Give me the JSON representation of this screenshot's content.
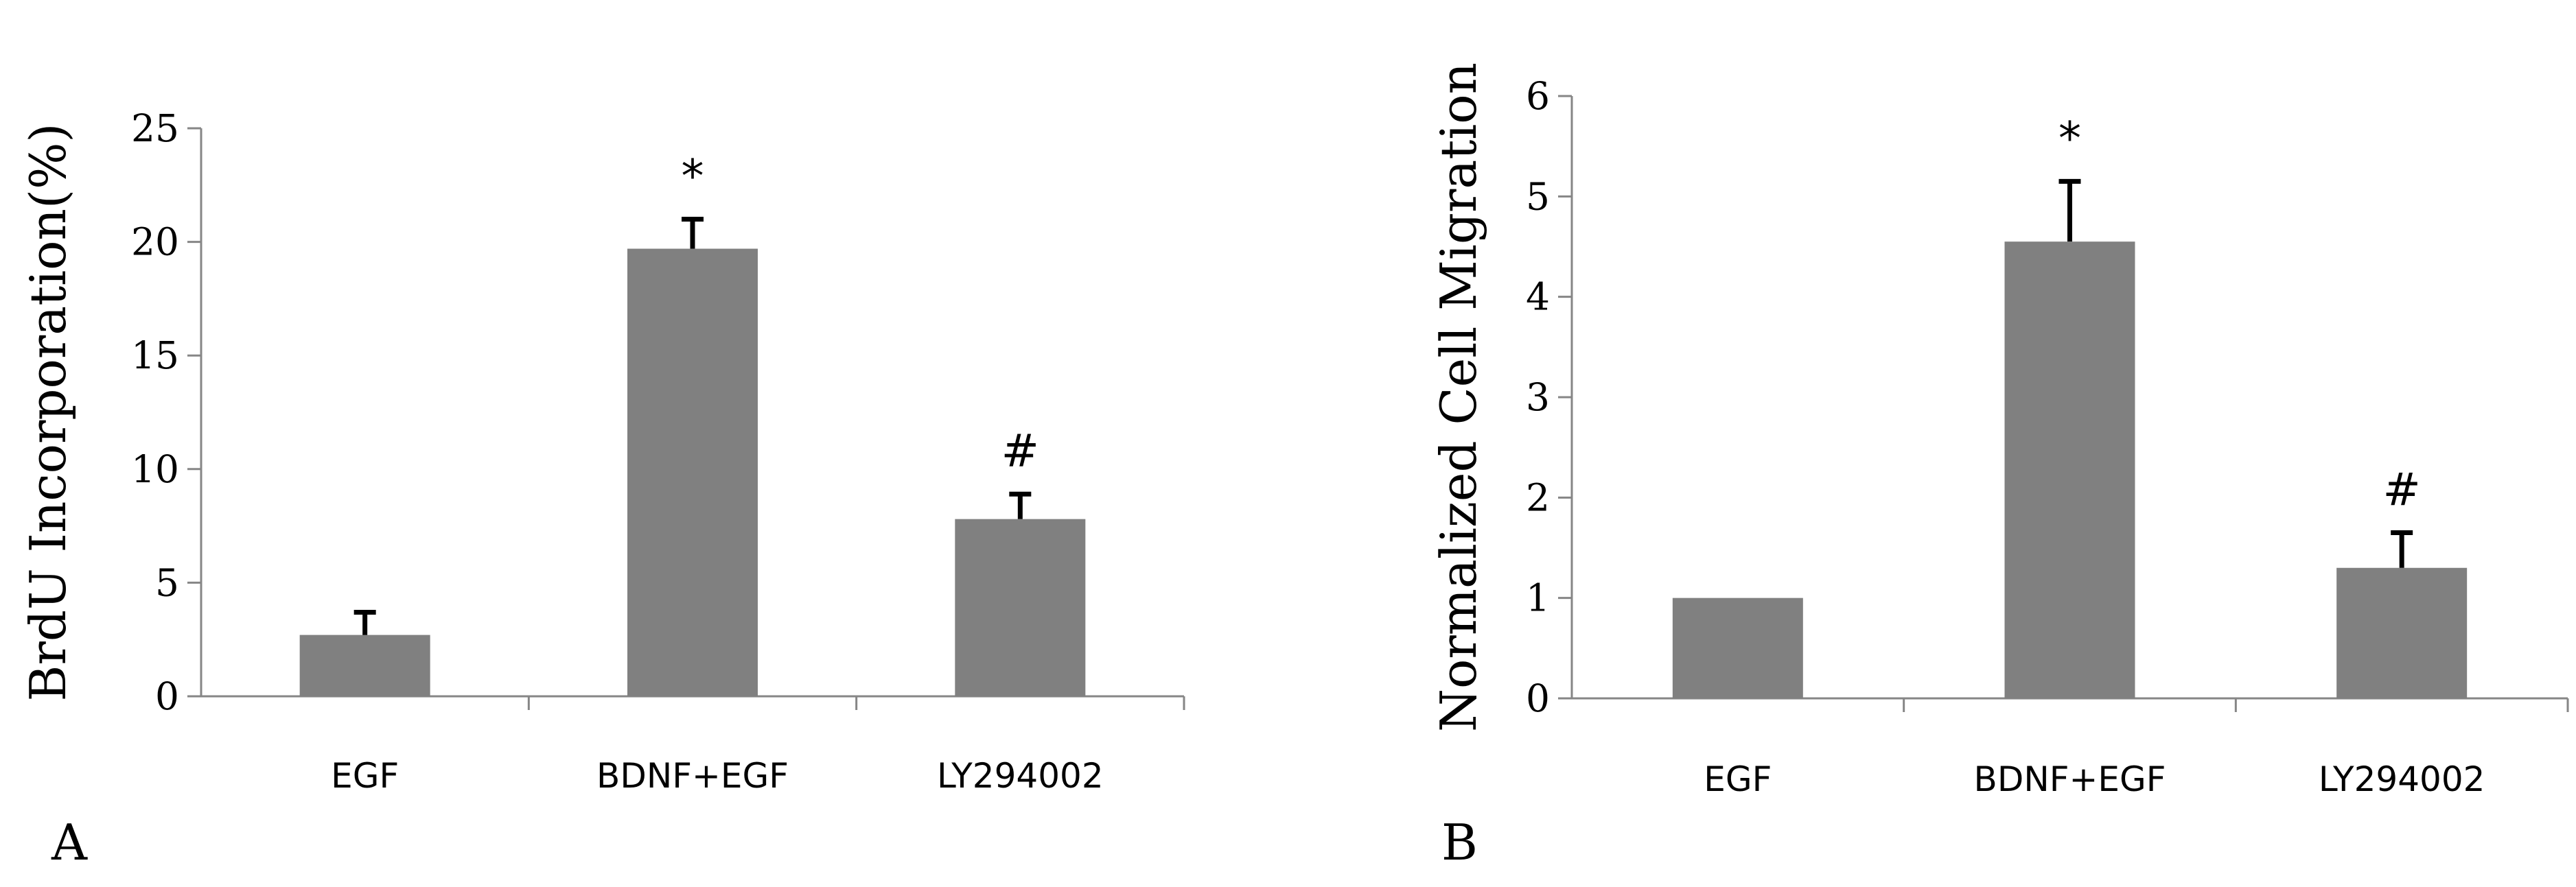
{
  "chart_data": [
    {
      "type": "bar",
      "panel_label": "A",
      "ylabel": "BrdU Incorporation(%)",
      "xlabel": "",
      "categories": [
        "EGF",
        "BDNF+EGF",
        "LY294002"
      ],
      "values": [
        2.7,
        19.7,
        7.8
      ],
      "error_bars": [
        1.0,
        1.3,
        1.1
      ],
      "annotations": [
        "",
        "*",
        "#"
      ],
      "ylim": [
        0,
        25
      ],
      "yticks": [
        0,
        5,
        10,
        15,
        20,
        25
      ],
      "bar_color": "#808080",
      "grid": false
    },
    {
      "type": "bar",
      "panel_label": "B",
      "ylabel": "Normalized Cell Migration",
      "xlabel": "",
      "categories": [
        "EGF",
        "BDNF+EGF",
        "LY294002"
      ],
      "values": [
        1.0,
        4.55,
        1.3
      ],
      "error_bars": [
        0,
        0.6,
        0.35
      ],
      "annotations": [
        "",
        "*",
        "#"
      ],
      "ylim": [
        0,
        6
      ],
      "yticks": [
        0,
        1,
        2,
        3,
        4,
        5,
        6
      ],
      "bar_color": "#808080",
      "grid": false
    }
  ]
}
